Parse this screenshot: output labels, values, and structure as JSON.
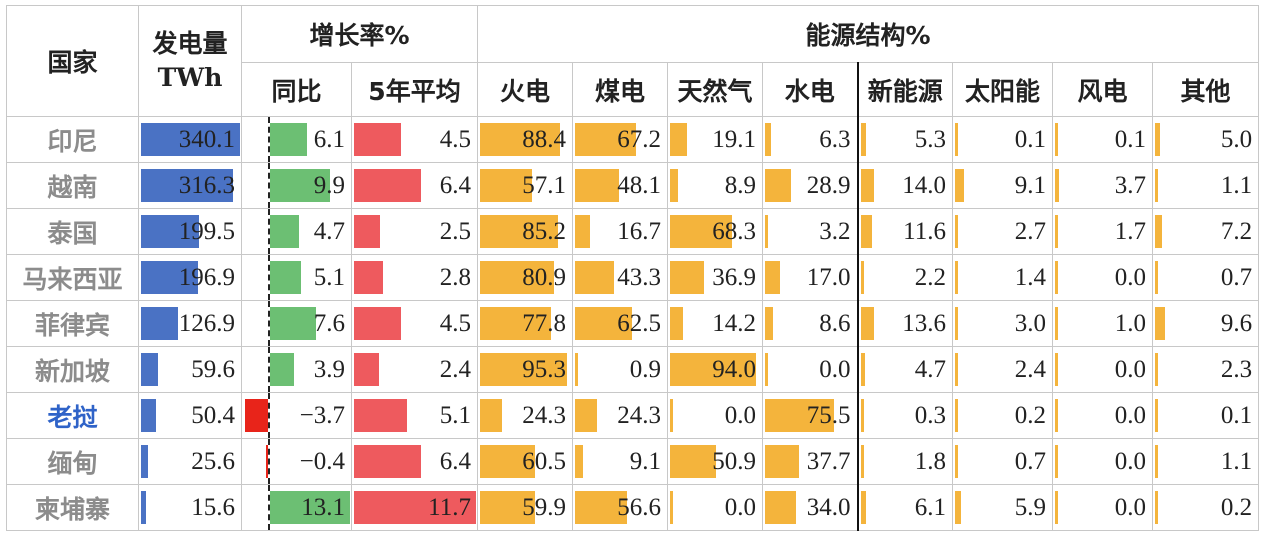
{
  "chart_data": {
    "type": "table",
    "headers": {
      "country": "国家",
      "generation": [
        "发电量",
        "TWh"
      ],
      "growth": "增长率%",
      "growth_yoy": "同比",
      "growth_5y": "5年平均",
      "structure": "能源结构%",
      "thermal": "火电",
      "coal": "煤电",
      "gas": "天然气",
      "hydro": "水电",
      "new_energy": "新能源",
      "solar": "太阳能",
      "wind": "风电",
      "other": "其他"
    },
    "rows": [
      {
        "country": "印尼",
        "highlight": false,
        "gen": "340.1",
        "yoy": "6.1",
        "avg5": "4.5",
        "thermal": "88.4",
        "coal": "67.2",
        "gas": "19.1",
        "hydro": "6.3",
        "new_energy": "5.3",
        "solar": "0.1",
        "wind": "0.1",
        "other": "5.0"
      },
      {
        "country": "越南",
        "highlight": false,
        "gen": "316.3",
        "yoy": "9.9",
        "avg5": "6.4",
        "thermal": "57.1",
        "coal": "48.1",
        "gas": "8.9",
        "hydro": "28.9",
        "new_energy": "14.0",
        "solar": "9.1",
        "wind": "3.7",
        "other": "1.1"
      },
      {
        "country": "泰国",
        "highlight": false,
        "gen": "199.5",
        "yoy": "4.7",
        "avg5": "2.5",
        "thermal": "85.2",
        "coal": "16.7",
        "gas": "68.3",
        "hydro": "3.2",
        "new_energy": "11.6",
        "solar": "2.7",
        "wind": "1.7",
        "other": "7.2"
      },
      {
        "country": "马来西亚",
        "highlight": false,
        "gen": "196.9",
        "yoy": "5.1",
        "avg5": "2.8",
        "thermal": "80.9",
        "coal": "43.3",
        "gas": "36.9",
        "hydro": "17.0",
        "new_energy": "2.2",
        "solar": "1.4",
        "wind": "0.0",
        "other": "0.7"
      },
      {
        "country": "菲律宾",
        "highlight": false,
        "gen": "126.9",
        "yoy": "7.6",
        "avg5": "4.5",
        "thermal": "77.8",
        "coal": "62.5",
        "gas": "14.2",
        "hydro": "8.6",
        "new_energy": "13.6",
        "solar": "3.0",
        "wind": "1.0",
        "other": "9.6"
      },
      {
        "country": "新加坡",
        "highlight": false,
        "gen": "59.6",
        "yoy": "3.9",
        "avg5": "2.4",
        "thermal": "95.3",
        "coal": "0.9",
        "gas": "94.0",
        "hydro": "0.0",
        "new_energy": "4.7",
        "solar": "2.4",
        "wind": "0.0",
        "other": "2.3"
      },
      {
        "country": "老挝",
        "highlight": true,
        "gen": "50.4",
        "yoy": "−3.7",
        "avg5": "5.1",
        "thermal": "24.3",
        "coal": "24.3",
        "gas": "0.0",
        "hydro": "75.5",
        "new_energy": "0.3",
        "solar": "0.2",
        "wind": "0.0",
        "other": "0.1"
      },
      {
        "country": "缅甸",
        "highlight": false,
        "gen": "25.6",
        "yoy": "−0.4",
        "avg5": "6.4",
        "thermal": "60.5",
        "coal": "9.1",
        "gas": "50.9",
        "hydro": "37.7",
        "new_energy": "1.8",
        "solar": "0.7",
        "wind": "0.0",
        "other": "1.1"
      },
      {
        "country": "柬埔寨",
        "highlight": false,
        "gen": "15.6",
        "yoy": "13.1",
        "avg5": "11.7",
        "thermal": "59.9",
        "coal": "56.6",
        "gas": "0.0",
        "hydro": "34.0",
        "new_energy": "6.1",
        "solar": "5.9",
        "wind": "0.0",
        "other": "0.2"
      }
    ],
    "colors": {
      "gen": "#4a72c4",
      "yoy_pos": "#6cbf73",
      "yoy_neg": "#e8241a",
      "avg5": "#ee5a5e",
      "structure": "#f4b43c",
      "header_gray": "#9a9a9a",
      "header_blue": "#2f63c8",
      "header_green": "#56b155"
    }
  }
}
